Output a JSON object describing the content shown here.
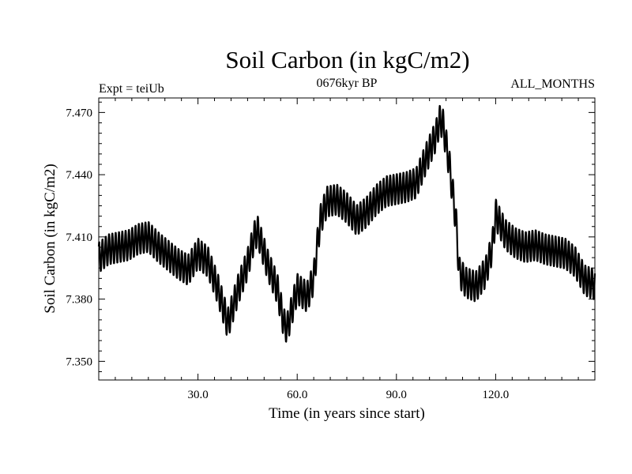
{
  "chart_data": {
    "type": "line",
    "title": "Soil Carbon (in kgC/m2)",
    "subtitle_left": "Expt = teiUb",
    "subtitle_center": "0676kyr BP",
    "subtitle_right": "ALL_MONTHS",
    "xlabel": "Time (in years since start)",
    "ylabel": "Soil Carbon (in kgC/m2)",
    "xlim": [
      0,
      150
    ],
    "ylim": [
      7.341,
      7.477
    ],
    "x_ticks": [
      30.0,
      60.0,
      90.0,
      120.0
    ],
    "x_tick_labels": [
      "30.0",
      "60.0",
      "90.0",
      "120.0"
    ],
    "y_ticks": [
      7.35,
      7.38,
      7.41,
      7.44,
      7.47
    ],
    "y_tick_labels": [
      "7.350",
      "7.380",
      "7.410",
      "7.440",
      "7.470"
    ],
    "grid": false,
    "seasonal_amplitude": 0.0075,
    "series": [
      {
        "name": "Soil Carbon",
        "x": [
          0,
          3,
          6,
          9,
          12,
          15,
          18,
          21,
          24,
          27,
          30,
          33,
          36,
          38,
          39,
          42,
          45,
          47,
          48,
          51,
          54,
          56,
          57,
          60,
          63,
          65,
          66,
          67,
          69,
          72,
          75,
          78,
          81,
          84,
          87,
          90,
          93,
          96,
          99,
          102,
          103,
          104,
          106,
          108,
          109,
          111,
          114,
          117,
          119,
          120,
          123,
          126,
          129,
          132,
          135,
          138,
          141,
          144,
          147,
          150
        ],
        "values": [
          7.4,
          7.404,
          7.405,
          7.406,
          7.409,
          7.41,
          7.405,
          7.401,
          7.397,
          7.394,
          7.402,
          7.398,
          7.385,
          7.374,
          7.368,
          7.384,
          7.397,
          7.41,
          7.413,
          7.397,
          7.385,
          7.368,
          7.366,
          7.385,
          7.381,
          7.39,
          7.405,
          7.418,
          7.427,
          7.428,
          7.424,
          7.418,
          7.422,
          7.428,
          7.432,
          7.433,
          7.434,
          7.436,
          7.448,
          7.459,
          7.466,
          7.465,
          7.445,
          7.418,
          7.393,
          7.388,
          7.386,
          7.393,
          7.405,
          7.421,
          7.411,
          7.407,
          7.405,
          7.406,
          7.404,
          7.403,
          7.402,
          7.398,
          7.389,
          7.387
        ]
      }
    ]
  }
}
